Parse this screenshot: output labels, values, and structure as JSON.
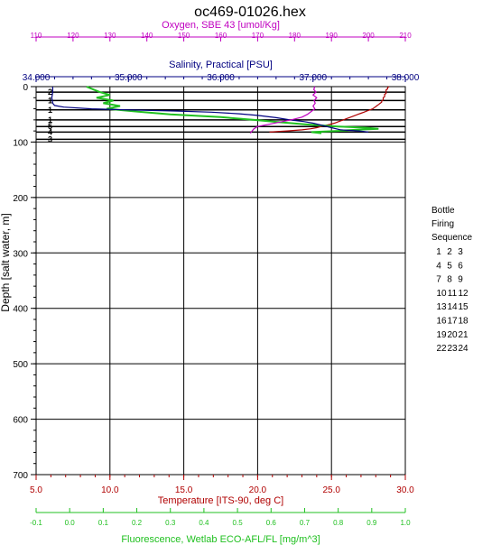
{
  "chart_data": {
    "type": "line",
    "title": "oc469-01026.hex",
    "y_axis": {
      "label": "Depth [salt water, m]",
      "range": [
        0,
        700
      ],
      "ticks": [
        0,
        100,
        200,
        300,
        400,
        500,
        600,
        700
      ],
      "inverted": true,
      "grid": true
    },
    "x_axes": [
      {
        "id": "temperature",
        "label": "Temperature [ITS-90, deg C]",
        "position": "bottom",
        "color": "#b00000",
        "range": [
          5,
          30
        ],
        "ticks": [
          "5.0",
          "10.0",
          "15.0",
          "20.0",
          "25.0",
          "30.0"
        ]
      },
      {
        "id": "fluorescence",
        "label": "Fluorescence, Wetlab ECO-AFL/FL [mg/m^3]",
        "position": "bottom-outer",
        "color": "#20c020",
        "range": [
          -0.1,
          1.0
        ],
        "ticks": [
          "-0.1",
          "0.0",
          "0.1",
          "0.2",
          "0.3",
          "0.4",
          "0.5",
          "0.6",
          "0.7",
          "0.8",
          "0.9",
          "1.0"
        ]
      },
      {
        "id": "salinity",
        "label": "Salinity, Practical [PSU]",
        "position": "top",
        "color": "#000080",
        "range": [
          34,
          38
        ],
        "ticks": [
          "34.000",
          "35.000",
          "36.000",
          "37.000",
          "38.000"
        ]
      },
      {
        "id": "oxygen",
        "label": "Oxygen, SBE 43 [umol/Kg]",
        "position": "top-outer",
        "color": "#c000c0",
        "range": [
          110,
          210
        ],
        "ticks": [
          "110",
          "120",
          "130",
          "140",
          "150",
          "160",
          "170",
          "180",
          "190",
          "200",
          "210"
        ]
      }
    ],
    "series": [
      {
        "axis": "temperature",
        "color": "#b00000",
        "points": [
          [
            28.9,
            0
          ],
          [
            28.8,
            2
          ],
          [
            28.8,
            4
          ],
          [
            28.7,
            6
          ],
          [
            28.7,
            8
          ],
          [
            28.7,
            10
          ],
          [
            28.7,
            12
          ],
          [
            28.6,
            14
          ],
          [
            28.6,
            16
          ],
          [
            28.6,
            18
          ],
          [
            28.5,
            20
          ],
          [
            28.5,
            22
          ],
          [
            28.5,
            24
          ],
          [
            28.4,
            26
          ],
          [
            28.4,
            28
          ],
          [
            28.3,
            30
          ],
          [
            28.2,
            32
          ],
          [
            28.1,
            34
          ],
          [
            28.0,
            36
          ],
          [
            27.9,
            38
          ],
          [
            27.8,
            40
          ],
          [
            27.6,
            42
          ],
          [
            27.4,
            44
          ],
          [
            27.2,
            46
          ],
          [
            27.0,
            48
          ],
          [
            26.8,
            50
          ],
          [
            26.6,
            52
          ],
          [
            26.4,
            54
          ],
          [
            26.2,
            56
          ],
          [
            26.0,
            58
          ],
          [
            25.8,
            60
          ],
          [
            25.6,
            62
          ],
          [
            25.4,
            64
          ],
          [
            25.2,
            66
          ],
          [
            24.9,
            68
          ],
          [
            24.6,
            70
          ],
          [
            24.3,
            72
          ],
          [
            24.0,
            74
          ],
          [
            23.6,
            76
          ],
          [
            23.0,
            78
          ],
          [
            22.0,
            80
          ],
          [
            20.8,
            82
          ]
        ]
      },
      {
        "axis": "fluorescence",
        "color": "#20c020",
        "points": [
          [
            0.05,
            0
          ],
          [
            0.07,
            5
          ],
          [
            0.09,
            10
          ],
          [
            0.12,
            15
          ],
          [
            0.08,
            20
          ],
          [
            0.13,
            25
          ],
          [
            0.1,
            30
          ],
          [
            0.15,
            35
          ],
          [
            0.11,
            40
          ],
          [
            0.2,
            45
          ],
          [
            0.3,
            50
          ],
          [
            0.45,
            55
          ],
          [
            0.55,
            60
          ],
          [
            0.62,
            64
          ],
          [
            0.7,
            68
          ],
          [
            0.75,
            70
          ],
          [
            0.8,
            72
          ],
          [
            0.88,
            74
          ],
          [
            0.92,
            76
          ],
          [
            0.85,
            78
          ],
          [
            0.8,
            80
          ],
          [
            0.72,
            82
          ],
          [
            0.75,
            84
          ]
        ]
      },
      {
        "axis": "salinity",
        "color": "#000080",
        "points": [
          [
            34.18,
            0
          ],
          [
            34.18,
            10
          ],
          [
            34.17,
            20
          ],
          [
            34.18,
            30
          ],
          [
            34.2,
            34
          ],
          [
            34.3,
            37
          ],
          [
            34.6,
            40
          ],
          [
            35.0,
            42
          ],
          [
            35.5,
            44
          ],
          [
            35.9,
            46
          ],
          [
            36.2,
            49
          ],
          [
            36.4,
            52
          ],
          [
            36.6,
            56
          ],
          [
            36.75,
            60
          ],
          [
            36.9,
            63
          ],
          [
            37.0,
            66
          ],
          [
            37.1,
            70
          ],
          [
            37.2,
            74
          ],
          [
            37.3,
            78
          ],
          [
            37.5,
            80
          ],
          [
            37.6,
            82
          ]
        ]
      },
      {
        "axis": "oxygen",
        "color": "#c000c0",
        "points": [
          [
            185.5,
            0
          ],
          [
            185.2,
            5
          ],
          [
            185.8,
            10
          ],
          [
            185.0,
            15
          ],
          [
            186.0,
            20
          ],
          [
            185.3,
            25
          ],
          [
            185.6,
            30
          ],
          [
            185.0,
            35
          ],
          [
            185.5,
            40
          ],
          [
            184.5,
            45
          ],
          [
            183.5,
            50
          ],
          [
            182.0,
            55
          ],
          [
            179.0,
            60
          ],
          [
            176.0,
            64
          ],
          [
            173.0,
            68
          ],
          [
            170.0,
            72
          ],
          [
            169.0,
            76
          ],
          [
            168.5,
            80
          ],
          [
            168.0,
            84
          ]
        ]
      }
    ],
    "bottle_depths": [
      {
        "depth": 10,
        "label": "2"
      },
      {
        "depth": 25,
        "label": "1"
      },
      {
        "depth": 42,
        "label": "1"
      },
      {
        "depth": 60,
        "label": "1"
      },
      {
        "depth": 72,
        "label": "5"
      },
      {
        "depth": 82,
        "label": "4"
      },
      {
        "depth": 95,
        "label": "3"
      }
    ],
    "legend": {
      "placement": "right",
      "title_lines": [
        "Bottle",
        "Firing",
        "Sequence"
      ],
      "rows": [
        [
          "1",
          "2",
          "3"
        ],
        [
          "4",
          "5",
          "6"
        ],
        [
          "7",
          "8",
          "9"
        ],
        [
          "10",
          "11",
          "12"
        ],
        [
          "13",
          "14",
          "15"
        ],
        [
          "16",
          "17",
          "18"
        ],
        [
          "19",
          "20",
          "21"
        ],
        [
          "22",
          "23",
          "24"
        ]
      ]
    }
  }
}
